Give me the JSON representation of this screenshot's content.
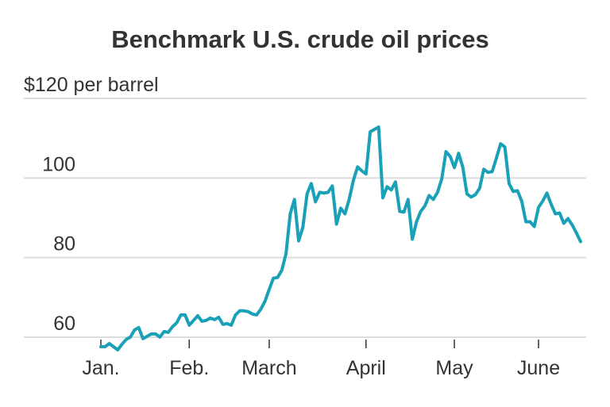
{
  "chart_data": {
    "type": "line",
    "title": "Benchmark U.S. crude oil prices",
    "categories": [
      "Jan.",
      null,
      null,
      null,
      null,
      null,
      null,
      null,
      null,
      null,
      null,
      null,
      null,
      null,
      null,
      null,
      null,
      null,
      null,
      null,
      null,
      "Feb.",
      null,
      null,
      null,
      null,
      null,
      null,
      null,
      null,
      null,
      null,
      null,
      null,
      null,
      null,
      null,
      null,
      null,
      null,
      "March",
      null,
      null,
      null,
      null,
      null,
      null,
      null,
      null,
      null,
      null,
      null,
      null,
      null,
      null,
      null,
      null,
      null,
      null,
      null,
      null,
      null,
      null,
      "April",
      null,
      null,
      null,
      null,
      null,
      null,
      null,
      null,
      null,
      null,
      null,
      null,
      null,
      null,
      null,
      null,
      null,
      null,
      null,
      null,
      "May",
      null,
      null,
      null,
      null,
      null,
      null,
      null,
      null,
      null,
      null,
      null,
      null,
      null,
      null,
      null,
      null,
      null,
      null,
      null,
      "June",
      null,
      null,
      null,
      null,
      null,
      null,
      null,
      null,
      null,
      null
    ],
    "values": [
      57.6,
      57.6,
      58.4,
      57.6,
      56.8,
      58.2,
      59.4,
      60,
      61.8,
      62.4,
      59.6,
      60.2,
      60.8,
      60.8,
      60,
      61.4,
      61.2,
      62.6,
      63.6,
      65.6,
      65.6,
      63,
      64.2,
      65.4,
      64,
      64.2,
      64.8,
      64.4,
      65,
      63.2,
      63.4,
      63,
      65.6,
      66.6,
      66.6,
      66.4,
      65.8,
      65.6,
      67,
      69,
      72,
      74.8,
      75,
      76.8,
      81,
      91,
      94.6,
      84.2,
      87.6,
      96,
      98.6,
      94,
      96.4,
      96.2,
      96.4,
      98,
      88.4,
      92.4,
      91,
      94.6,
      99.4,
      102.8,
      101.8,
      101,
      111.6,
      112.2,
      112.8,
      95,
      97.8,
      97,
      99,
      91.6,
      91.4,
      94.6,
      84.6,
      89,
      91.6,
      93,
      95.6,
      94.6,
      96.4,
      99.8,
      106.6,
      105.4,
      102.6,
      106.2,
      102.8,
      96,
      95.2,
      95.8,
      97.4,
      102.2,
      101.4,
      101.6,
      105,
      108.6,
      107.8,
      98.6,
      96.6,
      96.8,
      94.2,
      89,
      89,
      87.8,
      92.6,
      94.2,
      96.2,
      93.4,
      91,
      91.2,
      88.6,
      89.8,
      88.2,
      86.2,
      84
    ],
    "color": "#1aa1b7",
    "ylim": [
      56,
      120
    ],
    "yticks": [
      60,
      80,
      100,
      {
        "value": 120,
        "label": "$120 per barrel"
      }
    ],
    "grid": true
  }
}
